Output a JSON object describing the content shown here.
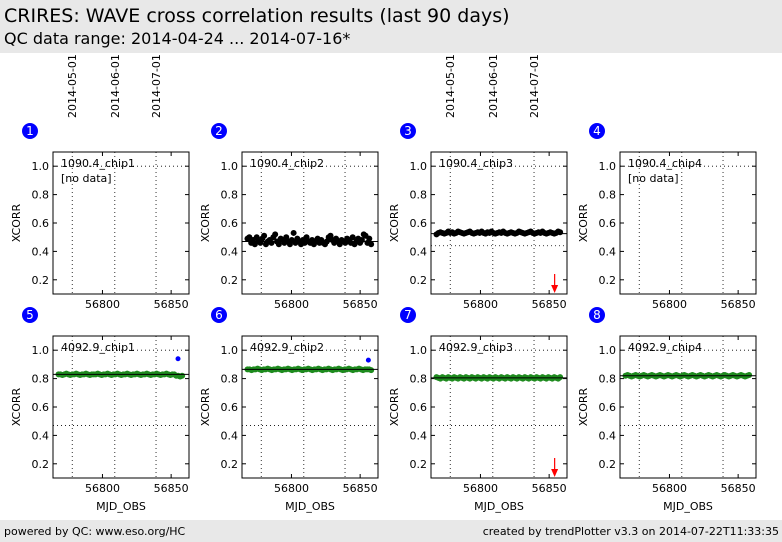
{
  "header": {
    "title": "CRIRES: WAVE cross correlation results (last 90 days)",
    "subtitle": "QC data range: 2014-04-24 ... 2014-07-16*"
  },
  "footer": {
    "left": "powered by QC: www.eso.org/HC",
    "right": "created by trendPlotter v3.3 on 2014-07-22T11:33:35"
  },
  "colors": {
    "green": "#1e8b1e",
    "blue": "#0000ff",
    "red": "#ff0000",
    "badge": "#0000ff"
  },
  "chart_data": [
    {
      "type": "scatter",
      "panel": "1",
      "label": "1090.4_chip1",
      "note": "[no data]",
      "date_labels": [
        "2014-05-01",
        "2014-06-01",
        "2014-07-01"
      ],
      "xlabel": "",
      "ylabel": "XCORR",
      "xlim": [
        56764,
        56863
      ],
      "ylim": [
        0.1,
        1.1
      ],
      "xticks": [
        56800,
        56850
      ],
      "yticks": [
        0.2,
        0.4,
        0.6,
        0.8,
        1.0
      ],
      "points_color": "#000000",
      "y_values": [],
      "reference": null,
      "lower_limit": null,
      "outliers": [],
      "arrow": false
    },
    {
      "type": "scatter",
      "panel": "2",
      "label": "1090.4_chip2",
      "note": "",
      "date_labels": [],
      "xlabel": "",
      "ylabel": "XCORR",
      "xlim": [
        56764,
        56863
      ],
      "ylim": [
        0.1,
        1.1
      ],
      "xticks": [
        56800,
        56850
      ],
      "yticks": [
        0.2,
        0.4,
        0.6,
        0.8,
        1.0
      ],
      "points_color": "#000000",
      "y_values": [
        0.49,
        0.5,
        0.46,
        0.48,
        0.45,
        0.5,
        0.47,
        0.46,
        0.49,
        0.51,
        0.45,
        0.47,
        0.48,
        0.46,
        0.5,
        0.52,
        0.47,
        0.45,
        0.49,
        0.48,
        0.46,
        0.5,
        0.47,
        0.45,
        0.48,
        0.53,
        0.46,
        0.49,
        0.47,
        0.45,
        0.48,
        0.46,
        0.5,
        0.47,
        0.46,
        0.48,
        0.45,
        0.47,
        0.49,
        0.46,
        0.48,
        0.46,
        0.45,
        0.47,
        0.5,
        0.51,
        0.48,
        0.46,
        0.49,
        0.47,
        0.45,
        0.48,
        0.47,
        0.46,
        0.49,
        0.48,
        0.46,
        0.5,
        0.45,
        0.47,
        0.49,
        0.46,
        0.48,
        0.52,
        0.51,
        0.46,
        0.49,
        0.45
      ],
      "reference": 0.47,
      "lower_limit": null,
      "outliers": [],
      "arrow": false
    },
    {
      "type": "scatter",
      "panel": "3",
      "label": "1090.4_chip3",
      "note": "",
      "date_labels": [
        "2014-05-01",
        "2014-06-01",
        "2014-07-01"
      ],
      "xlabel": "",
      "ylabel": "XCORR",
      "xlim": [
        56764,
        56863
      ],
      "ylim": [
        0.1,
        1.1
      ],
      "xticks": [
        56800,
        56850
      ],
      "yticks": [
        0.2,
        0.4,
        0.6,
        0.8,
        1.0
      ],
      "points_color": "#000000",
      "y_values": [
        0.52,
        0.53,
        0.535,
        0.53,
        0.525,
        0.53,
        0.54,
        0.53,
        0.535,
        0.525,
        0.53,
        0.54,
        0.535,
        0.53,
        0.525,
        0.53,
        0.535,
        0.54,
        0.53,
        0.525,
        0.53,
        0.535,
        0.53,
        0.54,
        0.53,
        0.525,
        0.535,
        0.53,
        0.54,
        0.53,
        0.525,
        0.53,
        0.535,
        0.53,
        0.54,
        0.53,
        0.525,
        0.53,
        0.535,
        0.53,
        0.525,
        0.53,
        0.54,
        0.535,
        0.53,
        0.525,
        0.53,
        0.535,
        0.54,
        0.53,
        0.525,
        0.53,
        0.535,
        0.53,
        0.54,
        0.53,
        0.525,
        0.53,
        0.535,
        0.53,
        0.525,
        0.53,
        0.54,
        0.535
      ],
      "reference": 0.525,
      "lower_limit": 0.44,
      "outliers": [],
      "arrow": true
    },
    {
      "type": "scatter",
      "panel": "4",
      "label": "1090.4_chip4",
      "note": "[no data]",
      "date_labels": [],
      "xlabel": "",
      "ylabel": "XCORR",
      "xlim": [
        56764,
        56863
      ],
      "ylim": [
        0.1,
        1.1
      ],
      "xticks": [
        56800,
        56850
      ],
      "yticks": [
        0.2,
        0.4,
        0.6,
        0.8,
        1.0
      ],
      "points_color": "#000000",
      "y_values": [],
      "reference": null,
      "lower_limit": null,
      "outliers": [],
      "arrow": false
    },
    {
      "type": "scatter",
      "panel": "5",
      "label": "4092.9_chip1",
      "note": "",
      "date_labels": [],
      "xlabel": "MJD_OBS",
      "ylabel": "XCORR",
      "xlim": [
        56764,
        56863
      ],
      "ylim": [
        0.1,
        1.1
      ],
      "xticks": [
        56800,
        56850
      ],
      "yticks": [
        0.2,
        0.4,
        0.6,
        0.8,
        1.0
      ],
      "points_color": "#1e8b1e",
      "y_values": [
        0.83,
        0.83,
        0.825,
        0.83,
        0.835,
        0.83,
        0.825,
        0.83,
        0.83,
        0.835,
        0.83,
        0.825,
        0.83,
        0.83,
        0.835,
        0.83,
        0.825,
        0.83,
        0.83,
        0.83,
        0.835,
        0.83,
        0.825,
        0.83,
        0.83,
        0.835,
        0.83,
        0.825,
        0.83,
        0.83,
        0.835,
        0.83,
        0.825,
        0.83,
        0.83,
        0.835,
        0.83,
        0.825,
        0.83,
        0.83,
        0.835,
        0.83,
        0.825,
        0.83,
        0.83,
        0.835,
        0.83,
        0.825,
        0.83,
        0.83,
        0.835,
        0.83,
        0.825,
        0.83,
        0.83,
        0.835,
        0.83,
        0.825,
        0.83,
        0.83,
        0.82,
        0.82,
        0.815,
        0.82
      ],
      "reference": 0.83,
      "lower_limit": 0.47,
      "outliers": [
        {
          "x": 56855,
          "y": 0.94
        }
      ],
      "arrow": false
    },
    {
      "type": "scatter",
      "panel": "6",
      "label": "4092.9_chip2",
      "note": "",
      "date_labels": [],
      "xlabel": "MJD_OBS",
      "ylabel": "XCORR",
      "xlim": [
        56764,
        56863
      ],
      "ylim": [
        0.1,
        1.1
      ],
      "xticks": [
        56800,
        56850
      ],
      "yticks": [
        0.2,
        0.4,
        0.6,
        0.8,
        1.0
      ],
      "points_color": "#1e8b1e",
      "y_values": [
        0.865,
        0.865,
        0.86,
        0.865,
        0.865,
        0.87,
        0.865,
        0.86,
        0.865,
        0.865,
        0.87,
        0.865,
        0.86,
        0.865,
        0.865,
        0.87,
        0.865,
        0.86,
        0.865,
        0.865,
        0.87,
        0.865,
        0.86,
        0.865,
        0.865,
        0.87,
        0.865,
        0.86,
        0.865,
        0.865,
        0.87,
        0.865,
        0.86,
        0.865,
        0.865,
        0.87,
        0.865,
        0.86,
        0.865,
        0.865,
        0.87,
        0.865,
        0.86,
        0.865,
        0.865,
        0.87,
        0.865,
        0.86,
        0.865,
        0.865,
        0.87,
        0.865,
        0.86,
        0.865,
        0.865,
        0.87,
        0.865,
        0.86,
        0.865,
        0.865,
        0.865,
        0.86
      ],
      "reference": 0.865,
      "lower_limit": 0.47,
      "outliers": [
        {
          "x": 56856,
          "y": 0.93
        }
      ],
      "arrow": false
    },
    {
      "type": "scatter",
      "panel": "7",
      "label": "4092.9_chip3",
      "note": "",
      "date_labels": [],
      "xlabel": "MJD_OBS",
      "ylabel": "XCORR",
      "xlim": [
        56764,
        56863
      ],
      "ylim": [
        0.1,
        1.1
      ],
      "xticks": [
        56800,
        56850
      ],
      "yticks": [
        0.2,
        0.4,
        0.6,
        0.8,
        1.0
      ],
      "points_color": "#1e8b1e",
      "y_values": [
        0.81,
        0.805,
        0.8,
        0.81,
        0.805,
        0.8,
        0.81,
        0.805,
        0.8,
        0.81,
        0.805,
        0.8,
        0.81,
        0.805,
        0.8,
        0.81,
        0.805,
        0.8,
        0.81,
        0.805,
        0.8,
        0.81,
        0.805,
        0.8,
        0.81,
        0.805,
        0.8,
        0.81,
        0.805,
        0.8,
        0.81,
        0.805,
        0.8,
        0.81,
        0.805,
        0.8,
        0.81,
        0.805,
        0.8,
        0.81,
        0.805,
        0.8,
        0.81,
        0.805,
        0.8,
        0.81,
        0.805,
        0.8,
        0.81,
        0.805,
        0.8,
        0.81,
        0.805,
        0.8,
        0.81,
        0.805,
        0.8,
        0.81,
        0.805,
        0.8,
        0.81,
        0.805,
        0.8,
        0.81
      ],
      "reference": 0.805,
      "lower_limit": 0.47,
      "outliers": [],
      "arrow": true
    },
    {
      "type": "scatter",
      "panel": "8",
      "label": "4092.9_chip4",
      "note": "",
      "date_labels": [],
      "xlabel": "MJD_OBS",
      "ylabel": "XCORR",
      "xlim": [
        56764,
        56863
      ],
      "ylim": [
        0.1,
        1.1
      ],
      "xticks": [
        56800,
        56850
      ],
      "yticks": [
        0.2,
        0.4,
        0.6,
        0.8,
        1.0
      ],
      "points_color": "#1e8b1e",
      "y_values": [
        0.82,
        0.825,
        0.82,
        0.815,
        0.82,
        0.825,
        0.82,
        0.815,
        0.82,
        0.825,
        0.82,
        0.815,
        0.82,
        0.825,
        0.82,
        0.815,
        0.82,
        0.825,
        0.82,
        0.815,
        0.82,
        0.825,
        0.82,
        0.815,
        0.82,
        0.825,
        0.82,
        0.815,
        0.82,
        0.825,
        0.82,
        0.815,
        0.82,
        0.825,
        0.82,
        0.815,
        0.82,
        0.825,
        0.82,
        0.815,
        0.82,
        0.825,
        0.82,
        0.815,
        0.82,
        0.825,
        0.82,
        0.815,
        0.82,
        0.825,
        0.82,
        0.815,
        0.82,
        0.825,
        0.82,
        0.815,
        0.82,
        0.825,
        0.82,
        0.815,
        0.82,
        0.825
      ],
      "reference": 0.82,
      "lower_limit": 0.47,
      "outliers": [],
      "arrow": false
    }
  ]
}
